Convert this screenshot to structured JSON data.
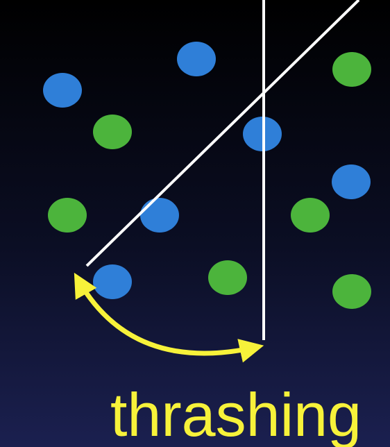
{
  "colors": {
    "blue_point": "#2f7fd8",
    "green_point": "#4cb43c",
    "line": "#ffffff",
    "arrow": "#f7f23a",
    "caption": "#f7f23a"
  },
  "points": [
    {
      "id": "blue-1",
      "class": "blue"
    },
    {
      "id": "blue-2",
      "class": "blue"
    },
    {
      "id": "blue-3",
      "class": "blue"
    },
    {
      "id": "blue-4",
      "class": "blue"
    },
    {
      "id": "blue-5",
      "class": "blue"
    },
    {
      "id": "blue-6",
      "class": "blue"
    },
    {
      "id": "green-1",
      "class": "green"
    },
    {
      "id": "green-2",
      "class": "green"
    },
    {
      "id": "green-3",
      "class": "green"
    },
    {
      "id": "green-4",
      "class": "green"
    },
    {
      "id": "green-5",
      "class": "green"
    },
    {
      "id": "green-6",
      "class": "green"
    }
  ],
  "caption": "thrashing"
}
